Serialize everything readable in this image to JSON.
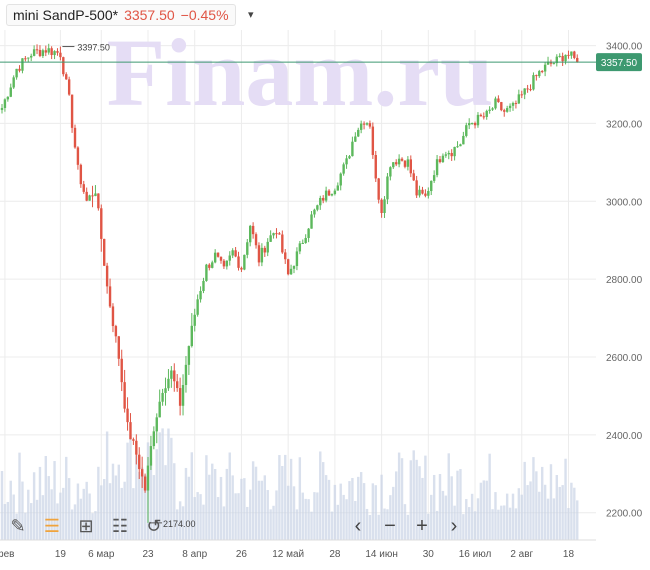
{
  "header": {
    "symbol": "mini SandP-500*",
    "price": "3357.50",
    "change": "−0.45%",
    "dropdown_icon": "chevron-down-icon"
  },
  "watermark": "Finam.ru",
  "colors": {
    "up": "#5cb85c",
    "down": "#e05545",
    "volume": "#c9d3e6",
    "grid": "#ececec",
    "last_price": "#3d9970",
    "watermark": "#e5ddf5"
  },
  "toolbar": {
    "items": [
      {
        "name": "pencil-icon",
        "glyph": "✎"
      },
      {
        "name": "indicators-icon",
        "glyph": "☰"
      },
      {
        "name": "add-chart-icon",
        "glyph": "⊞"
      },
      {
        "name": "settings-sliders-icon",
        "glyph": "☷"
      },
      {
        "name": "reset-icon",
        "glyph": "↺"
      }
    ],
    "nav": [
      {
        "name": "scroll-left-icon",
        "glyph": "‹"
      },
      {
        "name": "zoom-out-icon",
        "glyph": "−"
      },
      {
        "name": "zoom-in-icon",
        "glyph": "+"
      },
      {
        "name": "scroll-right-icon",
        "glyph": "›"
      }
    ]
  },
  "chart_data": {
    "type": "candlestick",
    "title": "mini SandP-500*",
    "ylim": [
      2130,
      3440
    ],
    "y_ticks": [
      "3400.00",
      "3200.00",
      "3000.00",
      "2800.00",
      "2600.00",
      "2400.00",
      "2200.00"
    ],
    "y_tick_values": [
      3400,
      3200,
      3000,
      2800,
      2600,
      2400,
      2200
    ],
    "x_tick_labels": [
      "фев",
      "19",
      "6 мар",
      "23",
      "8 апр",
      "26",
      "12 май",
      "28",
      "14 июн",
      "30",
      "16 июл",
      "2 авг",
      "18"
    ],
    "x_tick_index": [
      1,
      20,
      34,
      50,
      66,
      82,
      98,
      114,
      130,
      146,
      162,
      178,
      194
    ],
    "last_price": "3357.50",
    "last_price_value": 3357.5,
    "max_label": "3397.50",
    "max_value": 3397.5,
    "max_index": 20,
    "min_label": "2174.00",
    "min_value": 2174,
    "min_index": 50,
    "anchors": [
      [
        0,
        3240
      ],
      [
        5,
        3340
      ],
      [
        10,
        3380
      ],
      [
        15,
        3390
      ],
      [
        20,
        3380
      ],
      [
        23,
        3260
      ],
      [
        26,
        3080
      ],
      [
        29,
        3000
      ],
      [
        32,
        3030
      ],
      [
        36,
        2780
      ],
      [
        40,
        2600
      ],
      [
        43,
        2420
      ],
      [
        46,
        2350
      ],
      [
        49,
        2260
      ],
      [
        52,
        2420
      ],
      [
        55,
        2520
      ],
      [
        58,
        2560
      ],
      [
        61,
        2480
      ],
      [
        64,
        2630
      ],
      [
        67,
        2750
      ],
      [
        70,
        2830
      ],
      [
        73,
        2860
      ],
      [
        76,
        2820
      ],
      [
        79,
        2870
      ],
      [
        82,
        2830
      ],
      [
        85,
        2940
      ],
      [
        88,
        2850
      ],
      [
        91,
        2900
      ],
      [
        94,
        2930
      ],
      [
        98,
        2810
      ],
      [
        102,
        2880
      ],
      [
        106,
        2960
      ],
      [
        110,
        3010
      ],
      [
        114,
        3040
      ],
      [
        118,
        3100
      ],
      [
        121,
        3180
      ],
      [
        124,
        3210
      ],
      [
        126,
        3200
      ],
      [
        128,
        3050
      ],
      [
        130,
        2980
      ],
      [
        133,
        3100
      ],
      [
        136,
        3110
      ],
      [
        139,
        3100
      ],
      [
        142,
        3020
      ],
      [
        145,
        3010
      ],
      [
        148,
        3080
      ],
      [
        151,
        3130
      ],
      [
        154,
        3130
      ],
      [
        157,
        3150
      ],
      [
        160,
        3200
      ],
      [
        163,
        3210
      ],
      [
        166,
        3220
      ],
      [
        169,
        3250
      ],
      [
        172,
        3230
      ],
      [
        175,
        3240
      ],
      [
        178,
        3270
      ],
      [
        181,
        3300
      ],
      [
        184,
        3330
      ],
      [
        187,
        3350
      ],
      [
        190,
        3360
      ],
      [
        193,
        3380
      ],
      [
        195,
        3370
      ],
      [
        197,
        3357
      ]
    ]
  }
}
